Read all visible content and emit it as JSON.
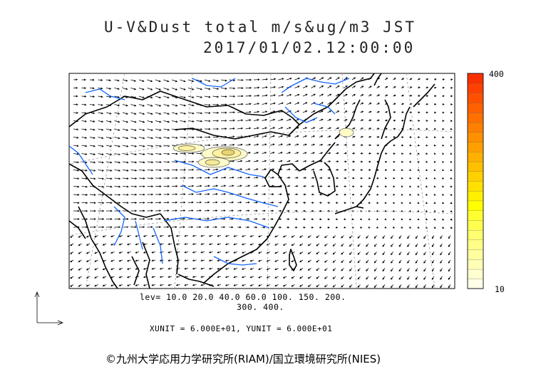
{
  "title_line1": "U-V&Dust total m/s&ug/m3 JST",
  "title_line2": "2017/01/02.12:00:00",
  "levels_line1": "lev= 10.0 20.0 40.0 60.0 100. 150. 200.",
  "levels_line2": "300. 400.",
  "units_line": "XUNIT = 6.000E+01, YUNIT = 6.000E+01",
  "colorbar": {
    "max_label": "400",
    "min_label": "10",
    "colors": [
      "#ffffe8",
      "#ffffd0",
      "#ffffb8",
      "#ffffa0",
      "#ffff88",
      "#ffff70",
      "#ffff50",
      "#ffff30",
      "#ffff00",
      "#fff000",
      "#ffe000",
      "#ffd000",
      "#ffc000",
      "#ffb000",
      "#ffa000",
      "#ff9000",
      "#ff8000",
      "#ff7000",
      "#ff6000",
      "#ff5000",
      "#ff4000",
      "#f83000"
    ]
  },
  "copyright": "©九州大学応用力学研究所(RIAM)/国立環境研究所(NIES)",
  "colors": {
    "coast": "#000000",
    "river": "#1464ff",
    "grid": "#888888"
  }
}
